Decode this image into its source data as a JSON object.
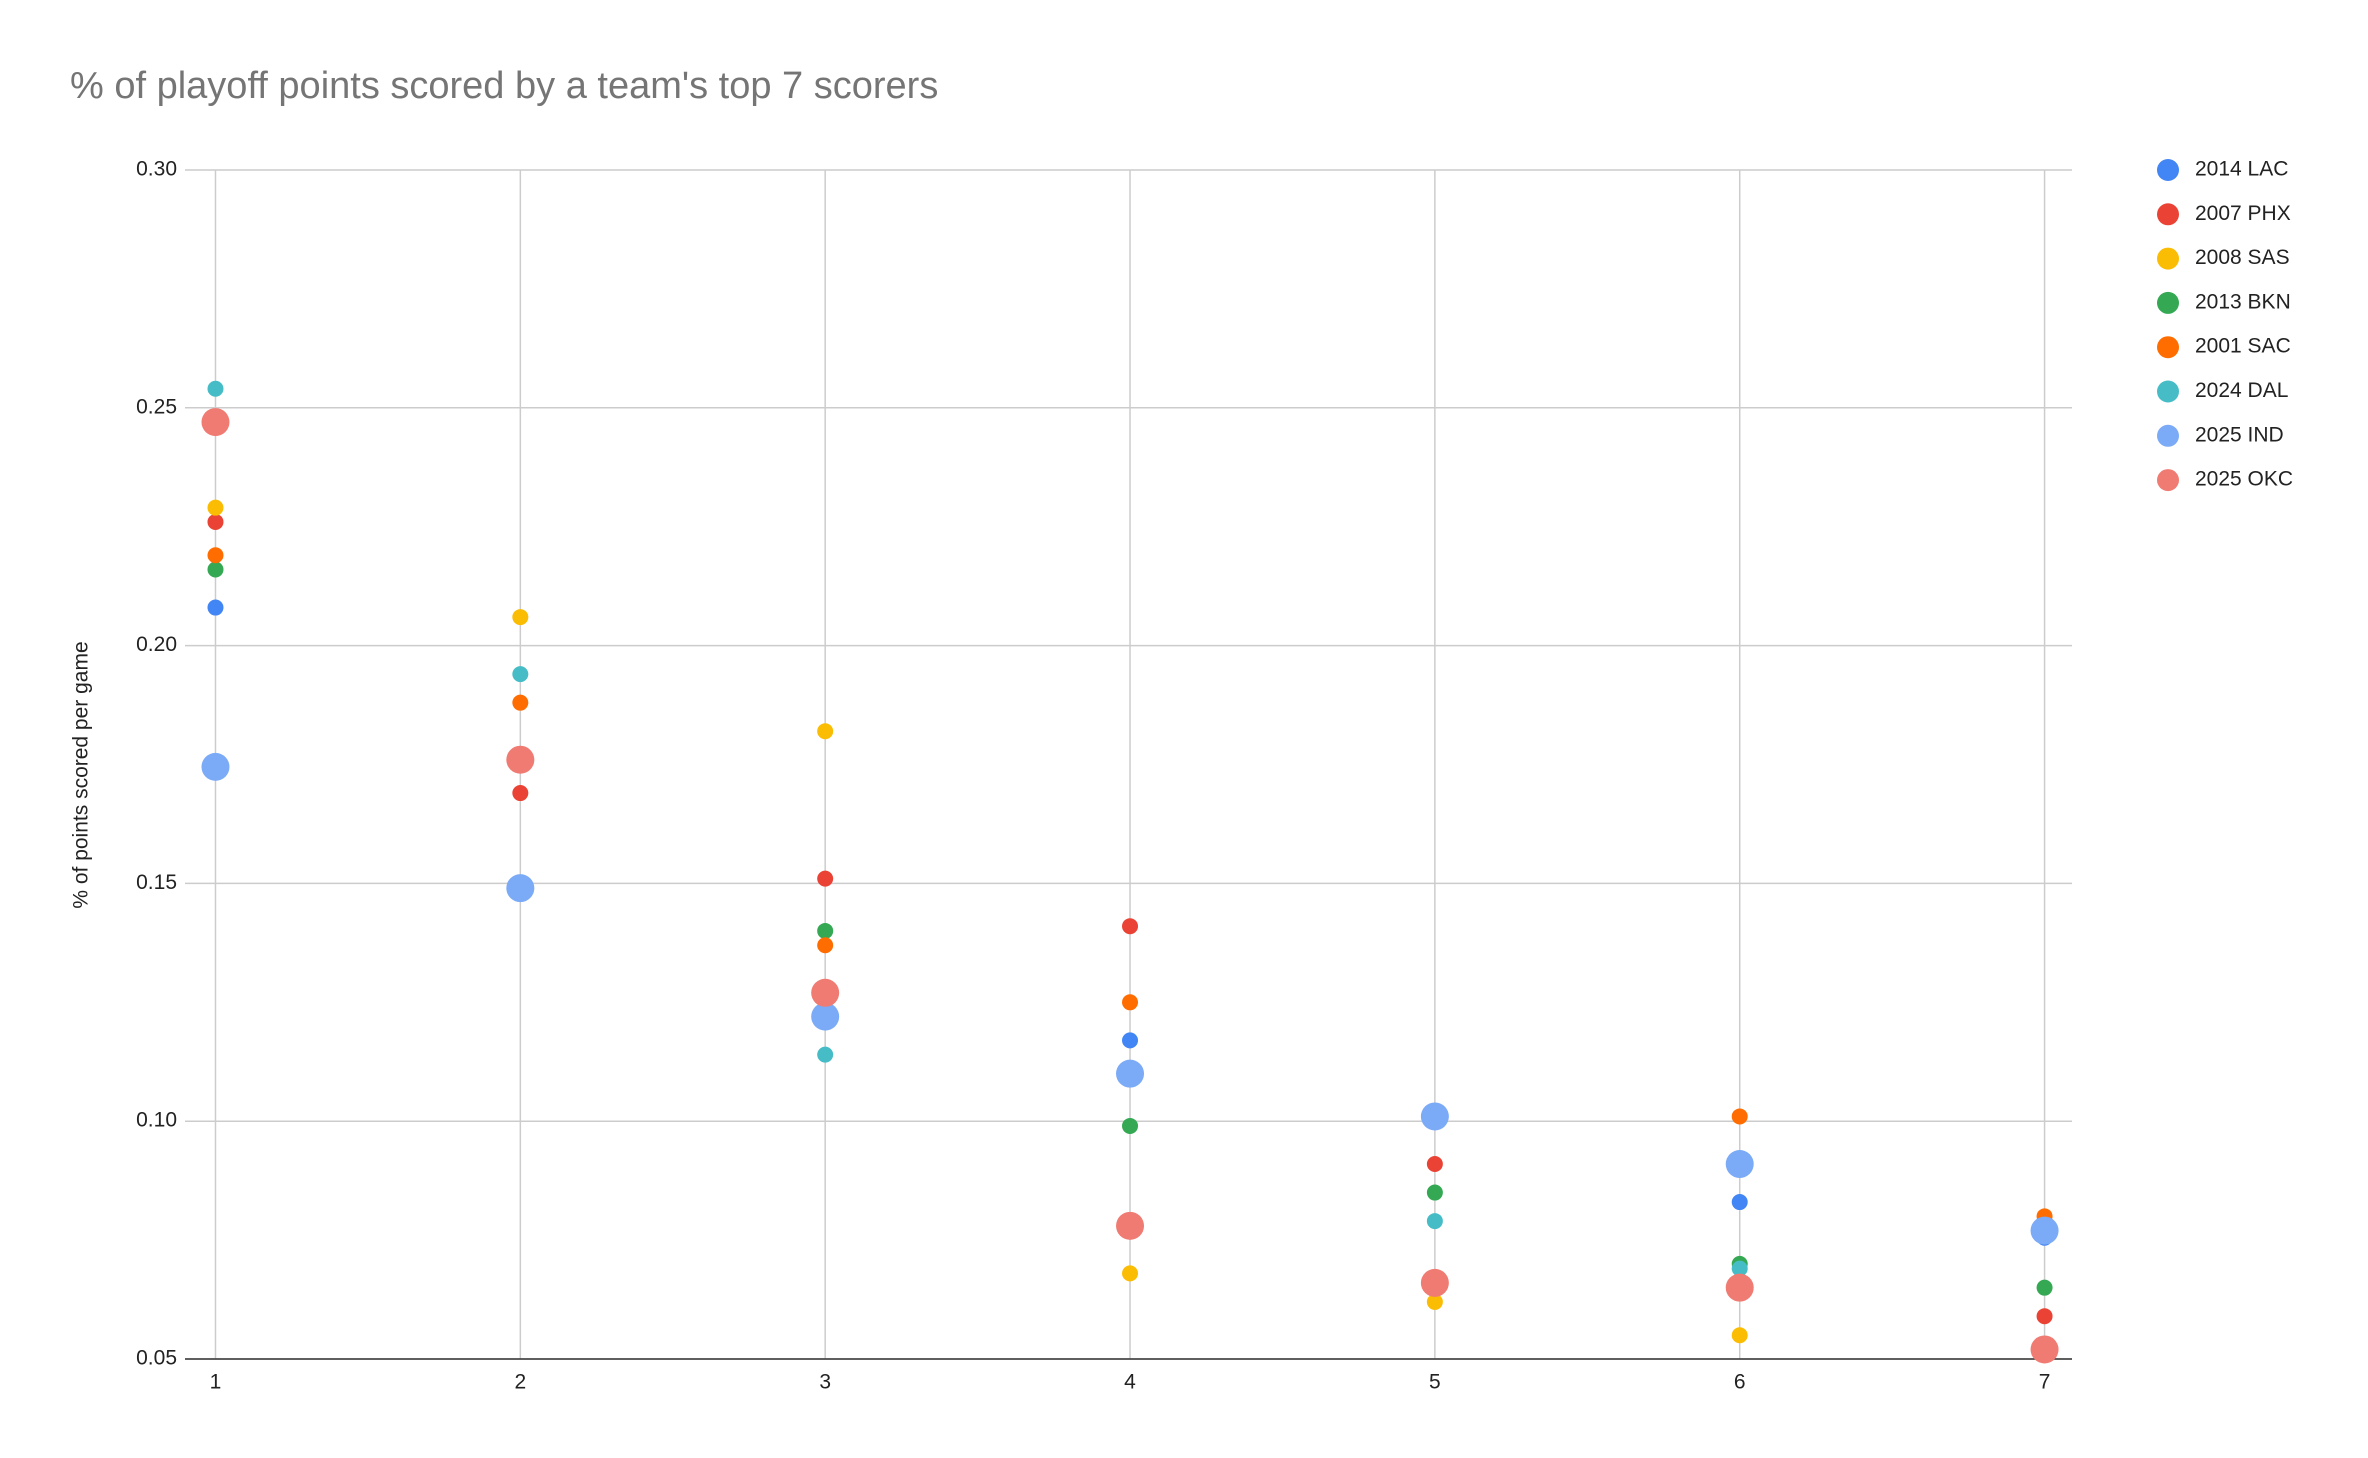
{
  "chart_data": {
    "type": "scatter",
    "title": "% of playoff points scored by a team's top 7 scorers",
    "y_label": "% of points scored per game",
    "x": [
      1,
      2,
      3,
      4,
      5,
      6,
      7
    ],
    "xlim": [
      0.9,
      7.09
    ],
    "xticks": [
      1,
      2,
      3,
      4,
      5,
      6,
      7
    ],
    "ylim": [
      0.05,
      0.3
    ],
    "yticks": [
      {
        "value": 0.05,
        "label": "0.05"
      },
      {
        "value": 0.1,
        "label": "0.10"
      },
      {
        "value": 0.15,
        "label": "0.15"
      },
      {
        "value": 0.2,
        "label": "0.20"
      },
      {
        "value": 0.25,
        "label": "0.25"
      },
      {
        "value": 0.3,
        "label": "0.30"
      }
    ],
    "grid": true,
    "legend": "right",
    "series": [
      {
        "name": "2014 LAC",
        "color": "#4285f4",
        "point_size": 8,
        "values": [
          0.208,
          0.149,
          0.127,
          0.117,
          0.101,
          0.083,
          0.0755
        ]
      },
      {
        "name": "2007 PHX",
        "color": "#ea4335",
        "point_size": 8,
        "values": [
          0.226,
          0.169,
          0.151,
          0.141,
          0.091,
          0.065,
          0.059
        ]
      },
      {
        "name": "2008 SAS",
        "color": "#fbbc04",
        "point_size": 8,
        "values": [
          0.229,
          0.206,
          0.182,
          0.068,
          0.062,
          0.055,
          0.077
        ]
      },
      {
        "name": "2013 BKN",
        "color": "#34a853",
        "point_size": 8,
        "values": [
          0.216,
          0.176,
          0.14,
          0.099,
          0.085,
          0.07,
          0.065
        ]
      },
      {
        "name": "2001 SAC",
        "color": "#ff6d01",
        "point_size": 8,
        "values": [
          0.219,
          0.188,
          0.137,
          0.125,
          0.102,
          0.101,
          0.08
        ]
      },
      {
        "name": "2024 DAL",
        "color": "#46bdc6",
        "point_size": 8,
        "values": [
          0.254,
          0.194,
          0.114,
          0.079,
          0.079,
          0.069,
          0.077
        ]
      },
      {
        "name": "2025 IND",
        "color": "#7baaf7",
        "point_size": 14,
        "values": [
          0.1745,
          0.149,
          0.122,
          0.11,
          0.101,
          0.091,
          0.077
        ]
      },
      {
        "name": "2025 OKC",
        "color": "#f07b72",
        "point_size": 14,
        "values": [
          0.247,
          0.176,
          0.127,
          0.078,
          0.066,
          0.065,
          0.052
        ]
      }
    ]
  }
}
